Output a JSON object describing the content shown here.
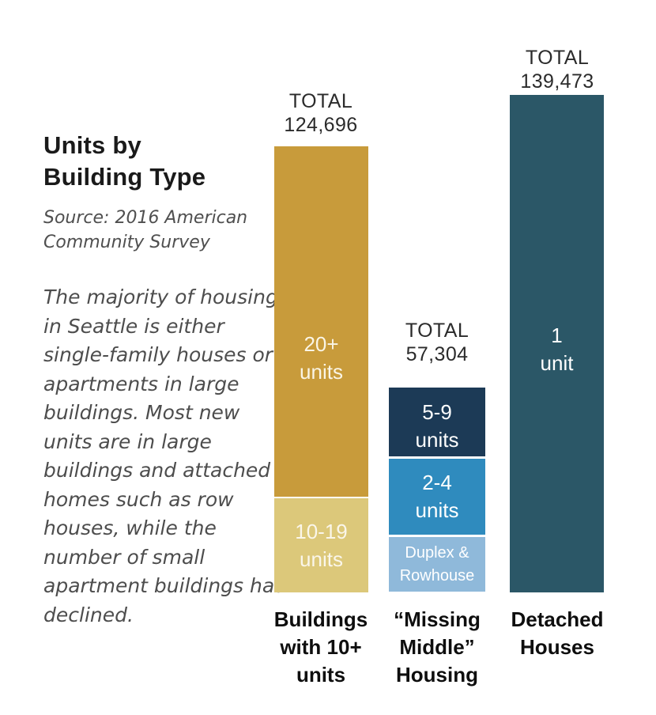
{
  "title_lines": [
    "Units by",
    "Building Type"
  ],
  "source_lines": [
    "Source: 2016 American",
    "Community Survey"
  ],
  "narrative": "The majority of housing in Seattle is either single-family houses or apartments in large buildings. Most new units are in large buildings and attached homes such as row houses, while the number of small apartment buildings has declined.",
  "colors": {
    "gold_dark": "#C89B3B",
    "gold_light": "#DCC87A",
    "navy": "#1C3A56",
    "blue_medium": "#2F8BBE",
    "blue_light": "#8FB9DA",
    "teal": "#2B5767",
    "title_text": "#1a1a1a",
    "narrative_text": "#4d4d4d",
    "total_text": "#2b2b2b",
    "category_text": "#0e0e0e"
  },
  "chart_data": {
    "type": "bar",
    "stacked": true,
    "title": "Units by Building Type",
    "source": "Source: 2016 American Community Survey",
    "total_word": "TOTAL",
    "categories": [
      "Buildings with 10+ units",
      "“Missing Middle” Housing",
      "Detached Houses"
    ],
    "totals": [
      124696,
      57304,
      139473
    ],
    "value_note": "segment values estimated from bar heights; only per-bar totals are printed on the chart",
    "bars": [
      {
        "category": "Buildings with 10+ units",
        "category_lines": [
          "Buildings",
          "with 10+",
          "units"
        ],
        "total": 124696,
        "total_display": "124,696",
        "segments": [
          {
            "label": "20+ units",
            "lines": [
              "20+",
              "units"
            ],
            "value_est": 98200,
            "color": "#C89B3B",
            "text_color": "#FAF5E6"
          },
          {
            "label": "10-19 units",
            "lines": [
              "10-19",
              "units"
            ],
            "value_est": 26500,
            "color": "#DCC87A",
            "text_color": "#FAF6EA"
          }
        ]
      },
      {
        "category": "“Missing Middle” Housing",
        "category_lines": [
          "“Missing",
          "Middle”",
          "Housing"
        ],
        "total": 57304,
        "total_display": "57,304",
        "segments": [
          {
            "label": "5-9 units",
            "lines": [
              "5-9",
              "units"
            ],
            "value_est": 19600,
            "color": "#1C3A56",
            "text_color": "#FFFFFF"
          },
          {
            "label": "2-4 units",
            "lines": [
              "2-4",
              "units"
            ],
            "value_est": 21700,
            "color": "#2F8BBE",
            "text_color": "#FFFFFF"
          },
          {
            "label": "Duplex & Rowhouse",
            "lines": [
              "Duplex &",
              "Rowhouse"
            ],
            "value_est": 16000,
            "color": "#8FB9DA",
            "text_color": "#FFFFFF"
          }
        ]
      },
      {
        "category": "Detached Houses",
        "category_lines": [
          "Detached",
          "Houses"
        ],
        "total": 139473,
        "total_display": "139,473",
        "segments": [
          {
            "label": "1 unit",
            "lines": [
              "1",
              "unit"
            ],
            "value_est": 139473,
            "color": "#2B5767",
            "text_color": "#FFFFFF"
          }
        ]
      }
    ]
  }
}
